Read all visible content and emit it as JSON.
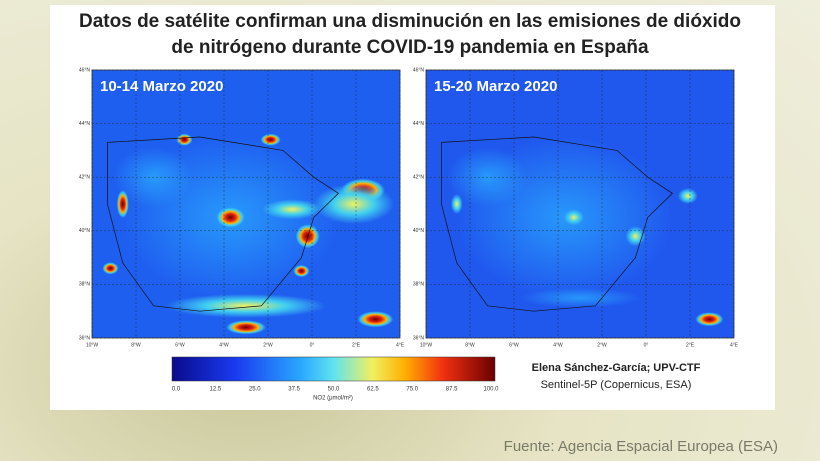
{
  "title_lines": [
    "Datos de satélite confirman una disminución en las emisiones de dióxido",
    "de nitrógeno durante COVID-19 pandemia en España"
  ],
  "panels": [
    {
      "label": "10-14 Marzo 2020"
    },
    {
      "label": "15-20 Marzo 2020"
    }
  ],
  "lat_ticks": [
    "46°N",
    "44°N",
    "42°N",
    "40°N",
    "38°N",
    "36°N"
  ],
  "lon_ticks": [
    "10°W",
    "8°W",
    "6°W",
    "4°W",
    "2°W",
    "0°",
    "2°E",
    "4°E"
  ],
  "colorbar": {
    "ticks": [
      "0.0",
      "12.5",
      "25.0",
      "37.5",
      "50.0",
      "62.5",
      "75.0",
      "87.5",
      "100.0"
    ],
    "label": "NO2 (μmol/m²)"
  },
  "credits": [
    "Elena Sánchez-García;  UPV-CTF",
    "Sentinel-5P (Copernicus, ESA)"
  ],
  "source": "Fuente: Agencia Espacial Europea (ESA)"
}
